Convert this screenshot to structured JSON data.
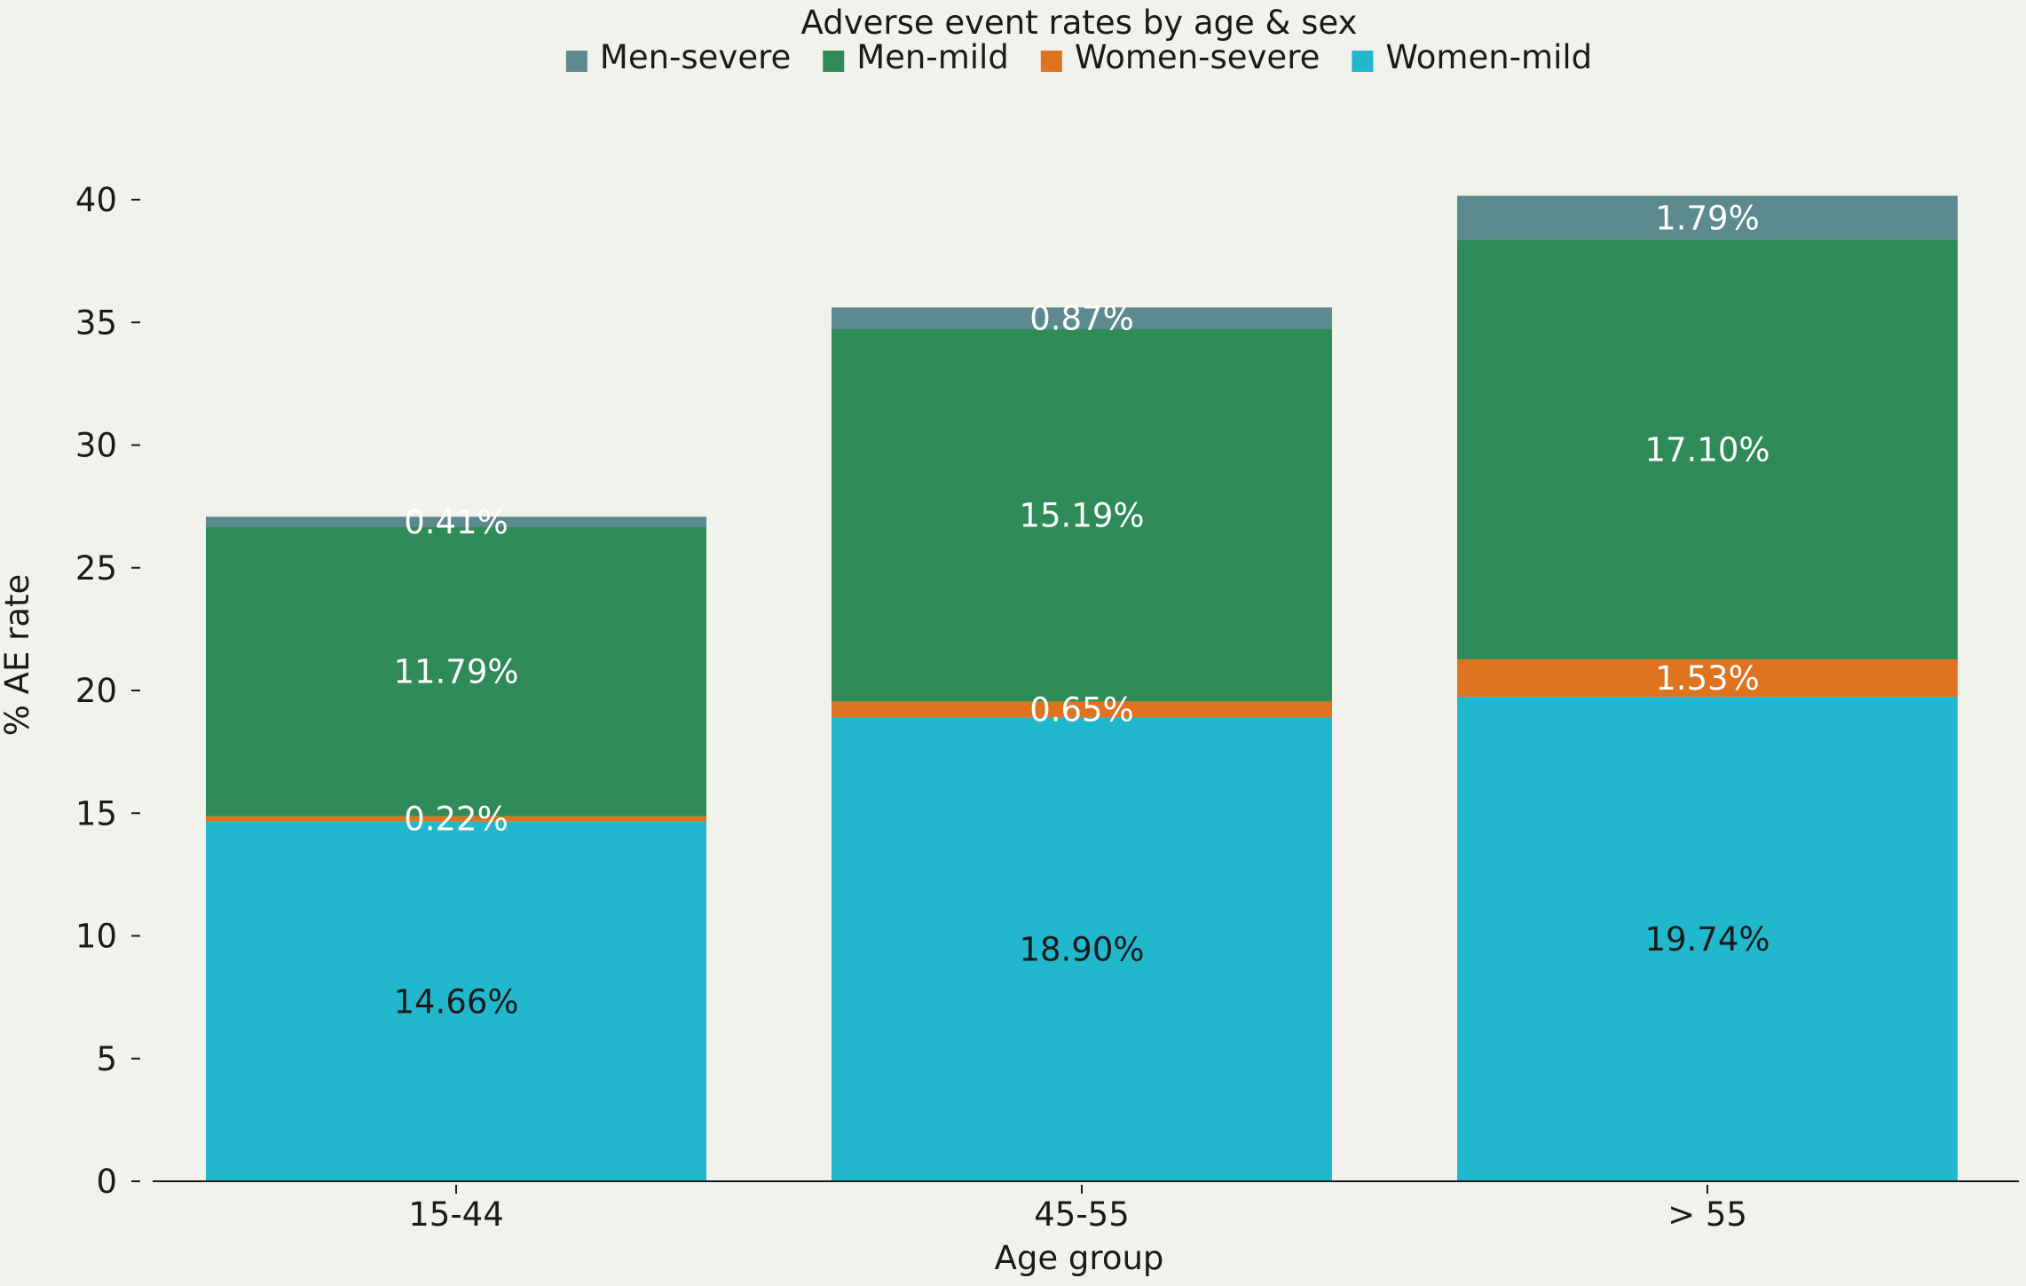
{
  "chart_data": {
    "type": "bar",
    "stacked": true,
    "title": "Adverse event rates by age & sex",
    "xlabel": "Age group",
    "ylabel": "% AE rate",
    "ylim": [
      0,
      40
    ],
    "yticks": [
      0,
      5,
      10,
      15,
      20,
      25,
      30,
      35,
      40
    ],
    "categories": [
      "15-44",
      "45-55",
      "> 55"
    ],
    "legend_position": "top-center",
    "grid": false,
    "series": [
      {
        "name": "Women-mild",
        "color": "#21b7cd",
        "label_color": "#1a1a1a",
        "values": [
          14.66,
          18.9,
          19.74
        ],
        "labels": [
          "14.66%",
          "18.90%",
          "19.74%"
        ]
      },
      {
        "name": "Women-severe",
        "color": "#e07320",
        "label_color": "#ffffff",
        "values": [
          0.22,
          0.65,
          1.53
        ],
        "labels": [
          "0.22%",
          "0.65%",
          "1.53%"
        ]
      },
      {
        "name": "Men-mild",
        "color": "#2e8b57",
        "label_color": "#ffffff",
        "values": [
          11.79,
          15.19,
          17.1
        ],
        "labels": [
          "11.79%",
          "15.19%",
          "17.10%"
        ]
      },
      {
        "name": "Men-severe",
        "color": "#5c8a8e",
        "label_color": "#ffffff",
        "values": [
          0.41,
          0.87,
          1.79
        ],
        "labels": [
          "0.41%",
          "0.87%",
          "1.79%"
        ]
      }
    ],
    "legend_order": [
      "Men-severe",
      "Men-mild",
      "Women-severe",
      "Women-mild"
    ]
  }
}
